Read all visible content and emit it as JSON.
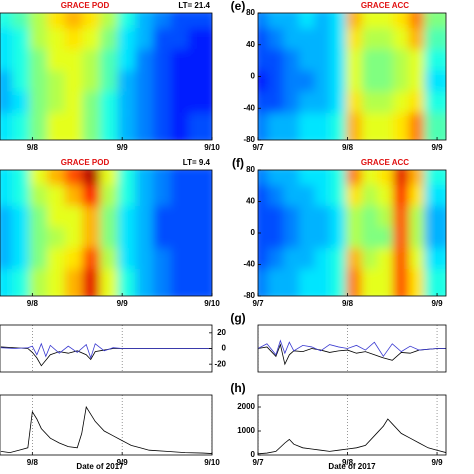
{
  "chart_data": [
    {
      "type": "heatmap",
      "title": "GRACE POD",
      "annotation": "LT= 21.4",
      "xlim": [
        7.64,
        10.0
      ],
      "ylim": [
        -80,
        80
      ],
      "zlim": [
        0,
        1
      ],
      "xticks": [
        {
          "value": 8,
          "label": "9/8"
        },
        {
          "value": 9,
          "label": "9/9"
        },
        {
          "value": 10,
          "label": "9/10"
        }
      ],
      "z": [
        [
          0.4,
          0.45,
          0.55,
          0.65,
          0.7,
          0.65,
          0.55,
          0.4,
          0.3,
          0.25,
          0.2,
          0.2
        ],
        [
          0.35,
          0.4,
          0.55,
          0.6,
          0.65,
          0.6,
          0.5,
          0.35,
          0.3,
          0.2,
          0.2,
          0.15
        ],
        [
          0.35,
          0.4,
          0.5,
          0.6,
          0.6,
          0.55,
          0.45,
          0.35,
          0.25,
          0.2,
          0.15,
          0.15
        ],
        [
          0.3,
          0.4,
          0.5,
          0.55,
          0.6,
          0.55,
          0.45,
          0.3,
          0.25,
          0.2,
          0.15,
          0.15
        ],
        [
          0.3,
          0.35,
          0.5,
          0.55,
          0.6,
          0.5,
          0.4,
          0.3,
          0.25,
          0.2,
          0.15,
          0.15
        ],
        [
          0.35,
          0.4,
          0.5,
          0.6,
          0.6,
          0.5,
          0.4,
          0.3,
          0.25,
          0.2,
          0.15,
          0.2
        ]
      ]
    },
    {
      "type": "heatmap",
      "title": "GRACE ACC",
      "panel_label": "(e)",
      "xlim": [
        7.0,
        9.1
      ],
      "ylim": [
        -80,
        80
      ],
      "zlim": [
        0,
        1
      ],
      "yticks": [
        80,
        40,
        0,
        -40,
        -80
      ],
      "xticks": [
        {
          "value": 7,
          "label": "9/7"
        },
        {
          "value": 8,
          "label": "9/8"
        },
        {
          "value": 9,
          "label": "9/9"
        }
      ],
      "z": [
        [
          0.25,
          0.3,
          0.3,
          0.35,
          0.3,
          0.35,
          0.7,
          0.6,
          0.6,
          0.65,
          0.75,
          0.5
        ],
        [
          0.2,
          0.25,
          0.3,
          0.3,
          0.3,
          0.35,
          0.65,
          0.55,
          0.55,
          0.6,
          0.7,
          0.45
        ],
        [
          0.2,
          0.2,
          0.25,
          0.3,
          0.3,
          0.35,
          0.6,
          0.5,
          0.5,
          0.55,
          0.6,
          0.4
        ],
        [
          0.15,
          0.2,
          0.25,
          0.25,
          0.3,
          0.35,
          0.6,
          0.5,
          0.5,
          0.55,
          0.6,
          0.35
        ],
        [
          0.2,
          0.2,
          0.25,
          0.3,
          0.3,
          0.35,
          0.65,
          0.55,
          0.55,
          0.6,
          0.65,
          0.4
        ],
        [
          0.25,
          0.3,
          0.3,
          0.35,
          0.35,
          0.4,
          0.7,
          0.6,
          0.6,
          0.65,
          0.75,
          0.45
        ]
      ]
    },
    {
      "type": "heatmap",
      "title": "GRACE POD",
      "annotation": "LT= 9.4",
      "xlim": [
        7.64,
        10.0
      ],
      "ylim": [
        -80,
        80
      ],
      "zlim": [
        0,
        1
      ],
      "xticks": [
        {
          "value": 8,
          "label": "9/8"
        },
        {
          "value": 9,
          "label": "9/9"
        },
        {
          "value": 10,
          "label": "9/10"
        }
      ],
      "z": [
        [
          0.35,
          0.4,
          0.6,
          0.7,
          0.8,
          0.95,
          0.6,
          0.4,
          0.3,
          0.25,
          0.2,
          0.2
        ],
        [
          0.35,
          0.4,
          0.55,
          0.6,
          0.7,
          0.85,
          0.55,
          0.4,
          0.3,
          0.25,
          0.2,
          0.2
        ],
        [
          0.3,
          0.35,
          0.5,
          0.6,
          0.6,
          0.7,
          0.5,
          0.35,
          0.3,
          0.2,
          0.2,
          0.2
        ],
        [
          0.3,
          0.35,
          0.5,
          0.55,
          0.6,
          0.7,
          0.5,
          0.35,
          0.3,
          0.2,
          0.2,
          0.2
        ],
        [
          0.3,
          0.35,
          0.5,
          0.6,
          0.65,
          0.8,
          0.55,
          0.35,
          0.3,
          0.25,
          0.2,
          0.2
        ],
        [
          0.35,
          0.4,
          0.55,
          0.6,
          0.7,
          0.9,
          0.6,
          0.4,
          0.3,
          0.25,
          0.2,
          0.2
        ]
      ]
    },
    {
      "type": "heatmap",
      "title": "GRACE ACC",
      "panel_label": "(f)",
      "xlim": [
        7.0,
        9.1
      ],
      "ylim": [
        -80,
        80
      ],
      "zlim": [
        0,
        1
      ],
      "yticks": [
        80,
        40,
        0,
        -40,
        -80
      ],
      "xticks": [
        {
          "value": 7,
          "label": "9/7"
        },
        {
          "value": 8,
          "label": "9/8"
        },
        {
          "value": 9,
          "label": "9/9"
        }
      ],
      "z": [
        [
          0.25,
          0.3,
          0.3,
          0.35,
          0.35,
          0.4,
          0.75,
          0.6,
          0.65,
          0.9,
          0.7,
          0.4
        ],
        [
          0.2,
          0.25,
          0.3,
          0.3,
          0.35,
          0.4,
          0.65,
          0.55,
          0.6,
          0.85,
          0.65,
          0.35
        ],
        [
          0.2,
          0.2,
          0.25,
          0.3,
          0.3,
          0.35,
          0.55,
          0.5,
          0.55,
          0.8,
          0.55,
          0.3
        ],
        [
          0.2,
          0.2,
          0.25,
          0.3,
          0.3,
          0.35,
          0.55,
          0.5,
          0.5,
          0.8,
          0.55,
          0.3
        ],
        [
          0.2,
          0.25,
          0.3,
          0.3,
          0.35,
          0.4,
          0.7,
          0.55,
          0.6,
          0.8,
          0.6,
          0.35
        ],
        [
          0.25,
          0.3,
          0.3,
          0.35,
          0.35,
          0.4,
          0.75,
          0.6,
          0.6,
          0.8,
          0.65,
          0.4
        ]
      ]
    },
    {
      "type": "line",
      "xlim": [
        7.64,
        10.0
      ],
      "ylim": [
        -30,
        30
      ],
      "grid": true,
      "yaxis_side": "right",
      "ytick_color": "#3a3ad0",
      "yticks": [
        20,
        0,
        -20
      ],
      "xticks": [
        8,
        9,
        10
      ],
      "x": [
        7.65,
        7.8,
        7.95,
        8.0,
        8.05,
        8.1,
        8.15,
        8.2,
        8.3,
        8.4,
        8.5,
        8.6,
        8.65,
        8.7,
        8.8,
        8.9,
        9.0,
        9.2,
        9.4,
        9.6,
        9.8,
        10.0
      ],
      "series": [
        {
          "color": "#000000",
          "values": [
            2,
            1,
            0,
            -5,
            -12,
            -22,
            -15,
            -8,
            -4,
            -6,
            -3,
            -8,
            -14,
            -4,
            -2,
            0,
            0,
            0,
            0,
            0,
            0,
            0
          ]
        },
        {
          "color": "#3a3ad0",
          "values": [
            1,
            0,
            1,
            3,
            -8,
            6,
            -10,
            4,
            -6,
            3,
            -5,
            5,
            -12,
            6,
            -3,
            1,
            0,
            0,
            0,
            0,
            0,
            0
          ]
        }
      ]
    },
    {
      "type": "line",
      "panel_label": "(g)",
      "xlim": [
        7.0,
        9.1
      ],
      "ylim": [
        -30,
        30
      ],
      "grid": true,
      "xticks": [
        7,
        8,
        9
      ],
      "x": [
        7.0,
        7.1,
        7.2,
        7.25,
        7.3,
        7.35,
        7.4,
        7.5,
        7.6,
        7.7,
        7.8,
        7.9,
        8.0,
        8.1,
        8.2,
        8.3,
        8.4,
        8.5,
        8.6,
        8.7,
        8.8,
        9.0,
        9.1
      ],
      "series": [
        {
          "color": "#000000",
          "values": [
            0,
            2,
            -10,
            5,
            -20,
            -8,
            -3,
            -4,
            0,
            -2,
            -5,
            -3,
            -2,
            -6,
            -4,
            -8,
            -12,
            -15,
            -5,
            -6,
            -2,
            0,
            0
          ]
        },
        {
          "color": "#3a3ad0",
          "values": [
            0,
            6,
            -8,
            10,
            -6,
            8,
            -3,
            4,
            2,
            -3,
            5,
            2,
            0,
            4,
            -2,
            8,
            -10,
            6,
            -4,
            3,
            -2,
            0,
            0
          ]
        }
      ]
    },
    {
      "type": "line",
      "xlabel": "Date of 2017",
      "xlim": [
        7.64,
        10.0
      ],
      "ylim": [
        0,
        2500
      ],
      "grid": true,
      "xticks": [
        {
          "value": 8,
          "label": "9/8"
        },
        {
          "value": 9,
          "label": "9/9"
        },
        {
          "value": 10,
          "label": "9/10"
        }
      ],
      "x": [
        7.65,
        7.75,
        7.85,
        7.95,
        8.0,
        8.05,
        8.1,
        8.2,
        8.3,
        8.4,
        8.5,
        8.55,
        8.6,
        8.65,
        8.7,
        8.8,
        8.9,
        9.0,
        9.1,
        9.2,
        9.3,
        9.5,
        9.7,
        9.9,
        10.0
      ],
      "series": [
        {
          "color": "#000000",
          "values": [
            150,
            100,
            200,
            300,
            1800,
            1500,
            1100,
            700,
            500,
            350,
            300,
            900,
            2000,
            1700,
            1400,
            1000,
            800,
            600,
            400,
            300,
            200,
            150,
            100,
            80,
            60
          ]
        }
      ]
    },
    {
      "type": "line",
      "panel_label": "(h)",
      "xlabel": "Date of 2017",
      "xlim": [
        7.0,
        9.1
      ],
      "ylim": [
        0,
        2500
      ],
      "grid": true,
      "yticks": [
        2000,
        1000,
        0
      ],
      "xticks": [
        {
          "value": 7,
          "label": "9/7"
        },
        {
          "value": 8,
          "label": "9/8"
        },
        {
          "value": 9,
          "label": "9/9"
        }
      ],
      "x": [
        7.0,
        7.1,
        7.2,
        7.3,
        7.35,
        7.4,
        7.5,
        7.6,
        7.7,
        7.8,
        7.9,
        8.0,
        8.1,
        8.2,
        8.3,
        8.4,
        8.45,
        8.5,
        8.6,
        8.7,
        8.8,
        8.9,
        9.0,
        9.1
      ],
      "series": [
        {
          "color": "#000000",
          "values": [
            50,
            80,
            150,
            500,
            650,
            450,
            300,
            250,
            200,
            150,
            200,
            250,
            300,
            400,
            800,
            1200,
            1500,
            1300,
            900,
            700,
            500,
            300,
            200,
            100
          ]
        }
      ]
    }
  ]
}
